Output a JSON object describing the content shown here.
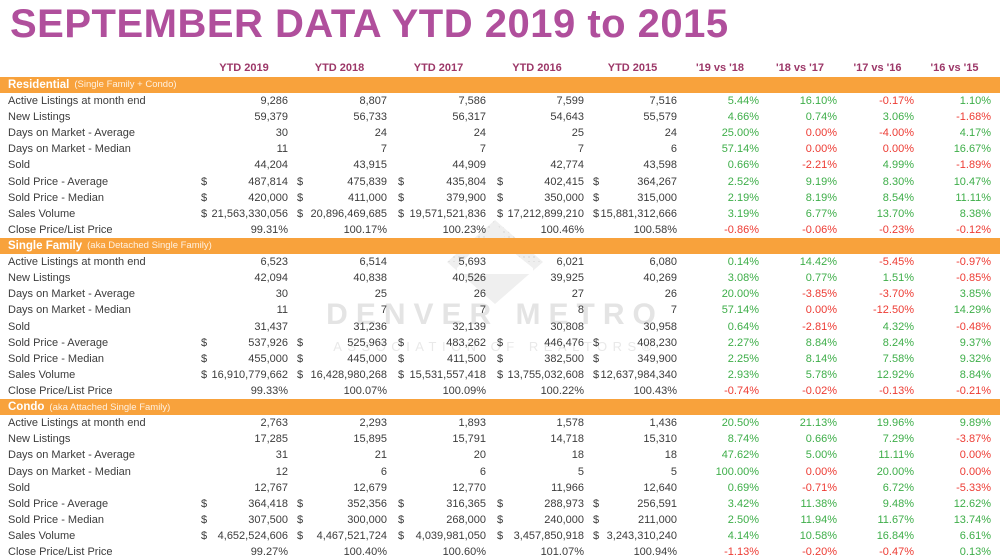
{
  "title": "SEPTEMBER DATA YTD 2019 to 2015",
  "currency_symbol": "$",
  "columns": [
    "YTD 2019",
    "YTD 2018",
    "YTD 2017",
    "YTD 2016",
    "YTD 2015",
    "'19 vs '18",
    "'18 vs '17",
    "'17 vs '16",
    "'16 vs '15"
  ],
  "watermark": {
    "line1": "DENVER METRO",
    "line2": "ASSOCIATION OF REALTORS®"
  },
  "colors": {
    "title": "#b04f9c",
    "column_header_text": "#9c3768",
    "section_bar": "#f8a23c",
    "positive_change": "#3eae49",
    "negative_change": "#ed3b33"
  },
  "sections": [
    {
      "name": "Residential",
      "subtitle": "(Single Family + Condo)",
      "rows": [
        {
          "label": "Active Listings at month end",
          "dollar": false,
          "values": [
            "9,286",
            "8,807",
            "7,586",
            "7,599",
            "7,516"
          ],
          "changes": [
            "5.44%",
            "16.10%",
            "-0.17%",
            "1.10%"
          ]
        },
        {
          "label": "New Listings",
          "dollar": false,
          "values": [
            "59,379",
            "56,733",
            "56,317",
            "54,643",
            "55,579"
          ],
          "changes": [
            "4.66%",
            "0.74%",
            "3.06%",
            "-1.68%"
          ]
        },
        {
          "label": "Days on Market - Average",
          "dollar": false,
          "values": [
            "30",
            "24",
            "24",
            "25",
            "24"
          ],
          "changes": [
            "25.00%",
            "0.00%",
            "-4.00%",
            "4.17%"
          ]
        },
        {
          "label": "Days on Market - Median",
          "dollar": false,
          "values": [
            "11",
            "7",
            "7",
            "7",
            "6"
          ],
          "changes": [
            "57.14%",
            "0.00%",
            "0.00%",
            "16.67%"
          ]
        },
        {
          "label": "Sold",
          "dollar": false,
          "values": [
            "44,204",
            "43,915",
            "44,909",
            "42,774",
            "43,598"
          ],
          "changes": [
            "0.66%",
            "-2.21%",
            "4.99%",
            "-1.89%"
          ]
        },
        {
          "label": "Sold Price - Average",
          "dollar": true,
          "values": [
            "487,814",
            "475,839",
            "435,804",
            "402,415",
            "364,267"
          ],
          "changes": [
            "2.52%",
            "9.19%",
            "8.30%",
            "10.47%"
          ]
        },
        {
          "label": "Sold Price - Median",
          "dollar": true,
          "values": [
            "420,000",
            "411,000",
            "379,900",
            "350,000",
            "315,000"
          ],
          "changes": [
            "2.19%",
            "8.19%",
            "8.54%",
            "11.11%"
          ]
        },
        {
          "label": "Sales Volume",
          "dollar": true,
          "values": [
            "21,563,330,056",
            "20,896,469,685",
            "19,571,521,836",
            "17,212,899,210",
            "15,881,312,666"
          ],
          "changes": [
            "3.19%",
            "6.77%",
            "13.70%",
            "8.38%"
          ]
        },
        {
          "label": "Close Price/List Price",
          "dollar": false,
          "values": [
            "99.31%",
            "100.17%",
            "100.23%",
            "100.46%",
            "100.58%"
          ],
          "changes": [
            "-0.86%",
            "-0.06%",
            "-0.23%",
            "-0.12%"
          ]
        }
      ]
    },
    {
      "name": "Single Family",
      "subtitle": "(aka Detached Single Family)",
      "rows": [
        {
          "label": "Active Listings at month end",
          "dollar": false,
          "values": [
            "6,523",
            "6,514",
            "5,693",
            "6,021",
            "6,080"
          ],
          "changes": [
            "0.14%",
            "14.42%",
            "-5.45%",
            "-0.97%"
          ]
        },
        {
          "label": "New Listings",
          "dollar": false,
          "values": [
            "42,094",
            "40,838",
            "40,526",
            "39,925",
            "40,269"
          ],
          "changes": [
            "3.08%",
            "0.77%",
            "1.51%",
            "-0.85%"
          ]
        },
        {
          "label": "Days on Market - Average",
          "dollar": false,
          "values": [
            "30",
            "25",
            "26",
            "27",
            "26"
          ],
          "changes": [
            "20.00%",
            "-3.85%",
            "-3.70%",
            "3.85%"
          ]
        },
        {
          "label": "Days on Market - Median",
          "dollar": false,
          "values": [
            "11",
            "7",
            "7",
            "8",
            "7"
          ],
          "changes": [
            "57.14%",
            "0.00%",
            "-12.50%",
            "14.29%"
          ]
        },
        {
          "label": "Sold",
          "dollar": false,
          "values": [
            "31,437",
            "31,236",
            "32,139",
            "30,808",
            "30,958"
          ],
          "changes": [
            "0.64%",
            "-2.81%",
            "4.32%",
            "-0.48%"
          ]
        },
        {
          "label": "Sold Price - Average",
          "dollar": true,
          "values": [
            "537,926",
            "525,963",
            "483,262",
            "446,476",
            "408,230"
          ],
          "changes": [
            "2.27%",
            "8.84%",
            "8.24%",
            "9.37%"
          ]
        },
        {
          "label": "Sold Price - Median",
          "dollar": true,
          "values": [
            "455,000",
            "445,000",
            "411,500",
            "382,500",
            "349,900"
          ],
          "changes": [
            "2.25%",
            "8.14%",
            "7.58%",
            "9.32%"
          ]
        },
        {
          "label": "Sales Volume",
          "dollar": true,
          "values": [
            "16,910,779,662",
            "16,428,980,268",
            "15,531,557,418",
            "13,755,032,608",
            "12,637,984,340"
          ],
          "changes": [
            "2.93%",
            "5.78%",
            "12.92%",
            "8.84%"
          ]
        },
        {
          "label": "Close Price/List Price",
          "dollar": false,
          "values": [
            "99.33%",
            "100.07%",
            "100.09%",
            "100.22%",
            "100.43%"
          ],
          "changes": [
            "-0.74%",
            "-0.02%",
            "-0.13%",
            "-0.21%"
          ]
        }
      ]
    },
    {
      "name": "Condo",
      "subtitle": "(aka Attached Single Family)",
      "rows": [
        {
          "label": "Active Listings at month end",
          "dollar": false,
          "values": [
            "2,763",
            "2,293",
            "1,893",
            "1,578",
            "1,436"
          ],
          "changes": [
            "20.50%",
            "21.13%",
            "19.96%",
            "9.89%"
          ]
        },
        {
          "label": "New Listings",
          "dollar": false,
          "values": [
            "17,285",
            "15,895",
            "15,791",
            "14,718",
            "15,310"
          ],
          "changes": [
            "8.74%",
            "0.66%",
            "7.29%",
            "-3.87%"
          ]
        },
        {
          "label": "Days on Market - Average",
          "dollar": false,
          "values": [
            "31",
            "21",
            "20",
            "18",
            "18"
          ],
          "changes": [
            "47.62%",
            "5.00%",
            "11.11%",
            "0.00%"
          ]
        },
        {
          "label": "Days on Market - Median",
          "dollar": false,
          "values": [
            "12",
            "6",
            "6",
            "5",
            "5"
          ],
          "changes": [
            "100.00%",
            "0.00%",
            "20.00%",
            "0.00%"
          ]
        },
        {
          "label": "Sold",
          "dollar": false,
          "values": [
            "12,767",
            "12,679",
            "12,770",
            "11,966",
            "12,640"
          ],
          "changes": [
            "0.69%",
            "-0.71%",
            "6.72%",
            "-5.33%"
          ]
        },
        {
          "label": "Sold Price - Average",
          "dollar": true,
          "values": [
            "364,418",
            "352,356",
            "316,365",
            "288,973",
            "256,591"
          ],
          "changes": [
            "3.42%",
            "11.38%",
            "9.48%",
            "12.62%"
          ]
        },
        {
          "label": "Sold Price - Median",
          "dollar": true,
          "values": [
            "307,500",
            "300,000",
            "268,000",
            "240,000",
            "211,000"
          ],
          "changes": [
            "2.50%",
            "11.94%",
            "11.67%",
            "13.74%"
          ]
        },
        {
          "label": "Sales Volume",
          "dollar": true,
          "values": [
            "4,652,524,606",
            "4,467,521,724",
            "4,039,981,050",
            "3,457,850,918",
            "3,243,310,240"
          ],
          "changes": [
            "4.14%",
            "10.58%",
            "16.84%",
            "6.61%"
          ]
        },
        {
          "label": "Close Price/List Price",
          "dollar": false,
          "values": [
            "99.27%",
            "100.40%",
            "100.60%",
            "101.07%",
            "100.94%"
          ],
          "changes": [
            "-1.13%",
            "-0.20%",
            "-0.47%",
            "0.13%"
          ]
        }
      ]
    }
  ]
}
